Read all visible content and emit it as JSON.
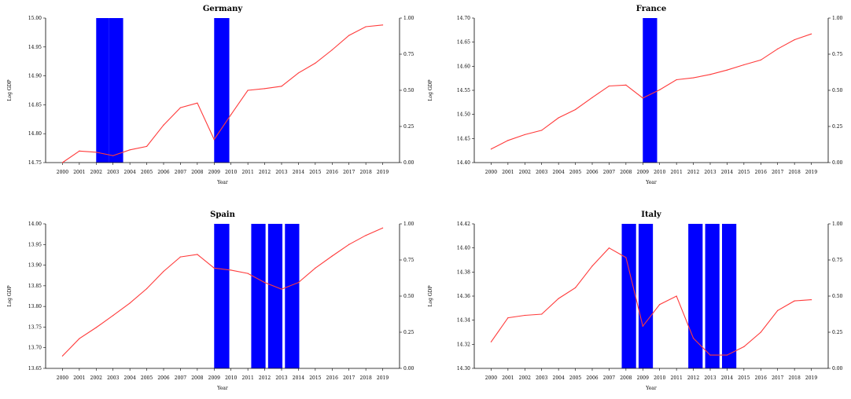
{
  "chart_data": [
    {
      "type": "line",
      "title": "Germany",
      "xlabel": "Year",
      "ylabel": "Log GDP",
      "x": [
        "2000",
        "2001",
        "2002",
        "2003",
        "2004",
        "2005",
        "2006",
        "2007",
        "2008",
        "2009",
        "2010",
        "2011",
        "2012",
        "2013",
        "2014",
        "2015",
        "2016",
        "2017",
        "2018",
        "2019"
      ],
      "series": [
        {
          "values": [
            14.75,
            14.77,
            14.768,
            14.762,
            14.772,
            14.778,
            14.815,
            14.845,
            14.853,
            14.79,
            14.833,
            14.875,
            14.878,
            14.882,
            14.905,
            14.922,
            14.945,
            14.97,
            14.985,
            14.988
          ]
        }
      ],
      "ylim": [
        14.75,
        15.0
      ],
      "yticks": [
        "14.75",
        "14.80",
        "14.85",
        "14.90",
        "14.95",
        "15.00"
      ],
      "y2lim": [
        0,
        1
      ],
      "y2ticks": [
        "0.00",
        "0.25",
        "0.50",
        "0.75",
        "1.00"
      ],
      "shaded": [
        [
          2002,
          2002.75
        ],
        [
          2002.75,
          2003.6
        ],
        [
          2009,
          2009.9
        ]
      ],
      "line_color": "#ff3b3b",
      "shade_color": "#0000ff",
      "grid": false
    },
    {
      "type": "line",
      "title": "France",
      "xlabel": "Year",
      "ylabel": "Log GDP",
      "x": [
        "2000",
        "2001",
        "2002",
        "2003",
        "2004",
        "2005",
        "2006",
        "2007",
        "2008",
        "2009",
        "2010",
        "2011",
        "2012",
        "2013",
        "2014",
        "2015",
        "2016",
        "2017",
        "2018",
        "2019"
      ],
      "series": [
        {
          "values": [
            14.428,
            14.446,
            14.458,
            14.467,
            14.493,
            14.51,
            14.535,
            14.559,
            14.561,
            14.534,
            14.551,
            14.572,
            14.576,
            14.583,
            14.592,
            14.603,
            14.613,
            14.636,
            14.655,
            14.667
          ]
        }
      ],
      "ylim": [
        14.4,
        14.7
      ],
      "yticks": [
        "14.40",
        "14.45",
        "14.50",
        "14.55",
        "14.60",
        "14.65",
        "14.70"
      ],
      "y2lim": [
        0,
        1
      ],
      "y2ticks": [
        "0.00",
        "0.25",
        "0.50",
        "0.75",
        "1.00"
      ],
      "shaded": [
        [
          2009,
          2009.85
        ]
      ],
      "line_color": "#ff3b3b",
      "shade_color": "#0000ff",
      "grid": false
    },
    {
      "type": "line",
      "title": "Spain",
      "xlabel": "Year",
      "ylabel": "Log GDP",
      "x": [
        "2000",
        "2001",
        "2002",
        "2003",
        "2004",
        "2005",
        "2006",
        "2007",
        "2008",
        "2009",
        "2010",
        "2011",
        "2012",
        "2013",
        "2014",
        "2015",
        "2016",
        "2017",
        "2018",
        "2019"
      ],
      "series": [
        {
          "values": [
            13.68,
            13.722,
            13.749,
            13.778,
            13.808,
            13.843,
            13.885,
            13.92,
            13.926,
            13.893,
            13.888,
            13.88,
            13.858,
            13.842,
            13.858,
            13.893,
            13.922,
            13.95,
            13.972,
            13.99
          ]
        }
      ],
      "ylim": [
        13.65,
        14.0
      ],
      "yticks": [
        "13.65",
        "13.70",
        "13.75",
        "13.80",
        "13.85",
        "13.90",
        "13.95",
        "14.00"
      ],
      "y2lim": [
        0,
        1
      ],
      "y2ticks": [
        "0.00",
        "0.25",
        "0.50",
        "0.75",
        "1.00"
      ],
      "shaded": [
        [
          2009,
          2009.9
        ],
        [
          2011.2,
          2012.05
        ],
        [
          2012.2,
          2013.05
        ],
        [
          2013.2,
          2014.05
        ]
      ],
      "line_color": "#ff3b3b",
      "shade_color": "#0000ff",
      "grid": false
    },
    {
      "type": "line",
      "title": "Italy",
      "xlabel": "Year",
      "ylabel": "Log GDP",
      "x": [
        "2000",
        "2001",
        "2002",
        "2003",
        "2004",
        "2005",
        "2006",
        "2007",
        "2008",
        "2009",
        "2010",
        "2011",
        "2012",
        "2013",
        "2014",
        "2015",
        "2016",
        "2017",
        "2018",
        "2019"
      ],
      "series": [
        {
          "values": [
            14.322,
            14.342,
            14.344,
            14.345,
            14.358,
            14.367,
            14.385,
            14.4,
            14.392,
            14.335,
            14.353,
            14.36,
            14.325,
            14.311,
            14.311,
            14.318,
            14.33,
            14.348,
            14.356,
            14.357
          ]
        }
      ],
      "ylim": [
        14.3,
        14.42
      ],
      "yticks": [
        "14.30",
        "14.32",
        "14.34",
        "14.36",
        "14.38",
        "14.40",
        "14.42"
      ],
      "y2lim": [
        0,
        1
      ],
      "y2ticks": [
        "0.00",
        "0.25",
        "0.50",
        "0.75",
        "1.00"
      ],
      "shaded": [
        [
          2007.75,
          2008.6
        ],
        [
          2008.75,
          2009.6
        ],
        [
          2011.7,
          2012.55
        ],
        [
          2012.7,
          2013.55
        ],
        [
          2013.7,
          2014.55
        ]
      ],
      "line_color": "#ff3b3b",
      "shade_color": "#0000ff",
      "grid": false
    }
  ]
}
